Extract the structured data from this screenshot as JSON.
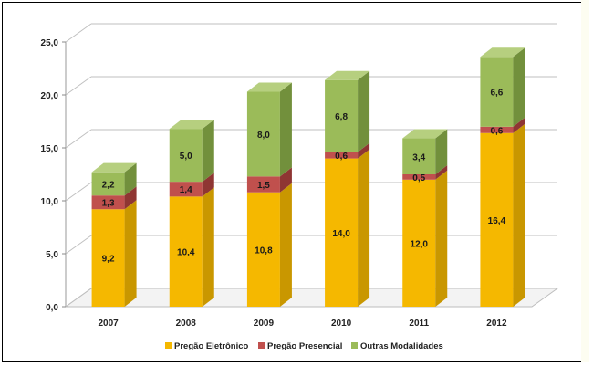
{
  "chart_data": {
    "type": "bar",
    "stacked": true,
    "style": "3d",
    "categories": [
      "2007",
      "2008",
      "2009",
      "2010",
      "2011",
      "2012"
    ],
    "series": [
      {
        "name": "Pregão Eletrônico",
        "color": "#f5b800",
        "side": "#c99700",
        "top": "#f8cd47",
        "values": [
          9.2,
          10.4,
          10.8,
          14.0,
          12.0,
          16.4
        ],
        "labels": [
          "9,2",
          "10,4",
          "10,8",
          "14,0",
          "12,0",
          "16,4"
        ]
      },
      {
        "name": "Pregão Presencial",
        "color": "#c0504d",
        "side": "#8f3633",
        "top": "#d27a77",
        "values": [
          1.3,
          1.4,
          1.5,
          0.6,
          0.5,
          0.6
        ],
        "labels": [
          "1,3",
          "1,4",
          "1,5",
          "0,6",
          "0,5",
          "0,6"
        ]
      },
      {
        "name": "Outras Modalidades",
        "color": "#9bbb59",
        "side": "#72903c",
        "top": "#b6cf7f",
        "values": [
          2.2,
          5.0,
          8.0,
          6.8,
          3.4,
          6.6
        ],
        "labels": [
          "2,2",
          "5,0",
          "8,0",
          "6,8",
          "3,4",
          "6,6"
        ]
      }
    ],
    "ylim": [
      0,
      25
    ],
    "yticks": [
      0,
      5,
      10,
      15,
      20,
      25
    ],
    "ytick_labels": [
      "0,0",
      "5,0",
      "10,0",
      "15,0",
      "20,0",
      "25,0"
    ],
    "grid": true,
    "legend": "bottom",
    "xlabel": "",
    "ylabel": "",
    "title": ""
  }
}
